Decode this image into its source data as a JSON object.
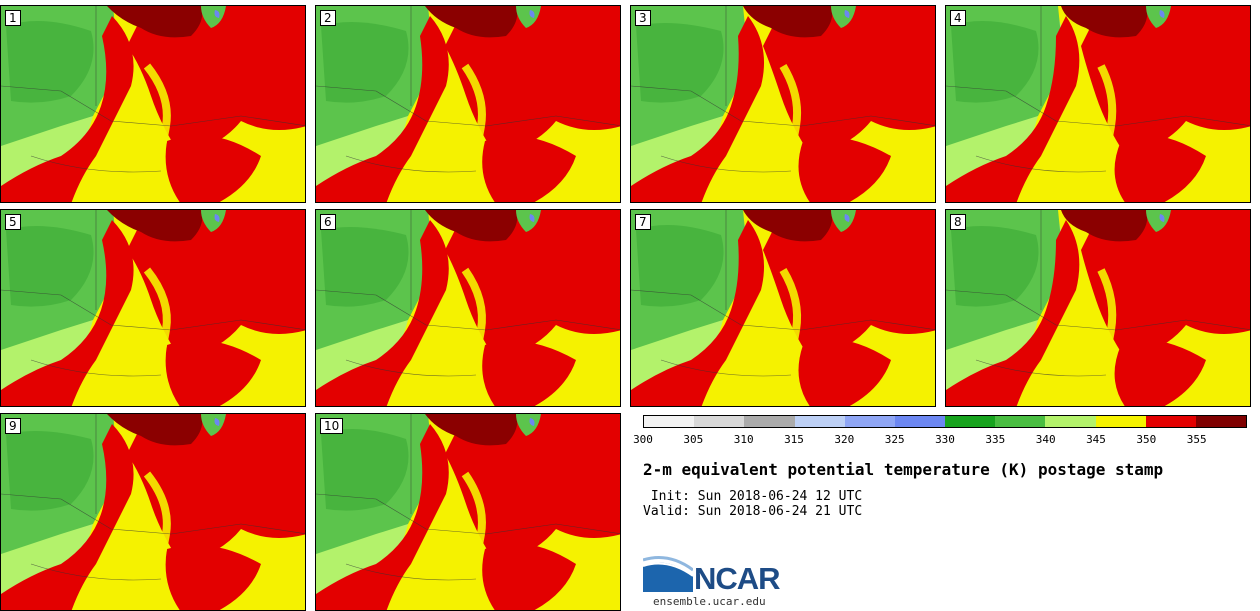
{
  "panels": [
    {
      "label": "1"
    },
    {
      "label": "2"
    },
    {
      "label": "3"
    },
    {
      "label": "4"
    },
    {
      "label": "5"
    },
    {
      "label": "6"
    },
    {
      "label": "7"
    },
    {
      "label": "8"
    },
    {
      "label": "9"
    },
    {
      "label": "10"
    }
  ],
  "colorbar": {
    "ticks": [
      "300",
      "305",
      "310",
      "315",
      "320",
      "325",
      "330",
      "335",
      "340",
      "345",
      "350",
      "355"
    ],
    "colors": [
      "#f2f2f2",
      "#d8d8d8",
      "#ababab",
      "#bdd0f5",
      "#8fa6f5",
      "#6c87f2",
      "#17a31e",
      "#49bd41",
      "#b3f26b",
      "#f5f200",
      "#e30000",
      "#7f0000"
    ]
  },
  "title": "2-m equivalent potential temperature (K) postage stamp",
  "init": " Init: Sun 2018-06-24 12 UTC",
  "valid": "Valid: Sun 2018-06-24 21 UTC",
  "logo": {
    "text": "NCAR",
    "website": "ensemble.ucar.edu"
  },
  "map_colors": {
    "dark_green": "#3aaa35",
    "mid_green": "#5cc44c",
    "light_green": "#b3f26b",
    "yellow": "#f5f200",
    "red": "#e30000",
    "dark_red": "#8b0000",
    "blue": "#6c87f2"
  }
}
